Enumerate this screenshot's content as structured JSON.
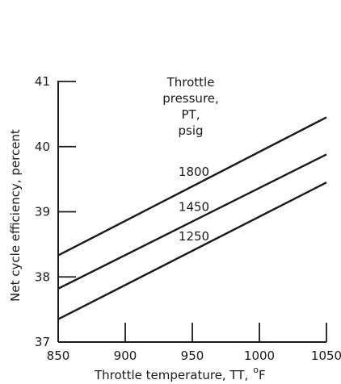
{
  "chart_data": {
    "type": "line",
    "xlabel": "Throttle temperature, TT,",
    "xlabel_unit_superscript": "o",
    "xlabel_unit": "F",
    "ylabel": "Net cycle efficiency, percent",
    "xlim": [
      850,
      1050
    ],
    "ylim": [
      37,
      41
    ],
    "x_ticks": [
      850,
      900,
      950,
      1000,
      1050
    ],
    "y_ticks": [
      37,
      38,
      39,
      40,
      41
    ],
    "grid": false,
    "legend_title_lines": [
      "Throttle",
      "pressure,",
      "PT,",
      "psig"
    ],
    "series": [
      {
        "name": "1800",
        "x": [
          850,
          1050
        ],
        "y": [
          38.33,
          40.45
        ]
      },
      {
        "name": "1450",
        "x": [
          850,
          1050
        ],
        "y": [
          37.82,
          39.88
        ]
      },
      {
        "name": "1250",
        "x": [
          850,
          1050
        ],
        "y": [
          37.35,
          39.45
        ]
      }
    ]
  }
}
